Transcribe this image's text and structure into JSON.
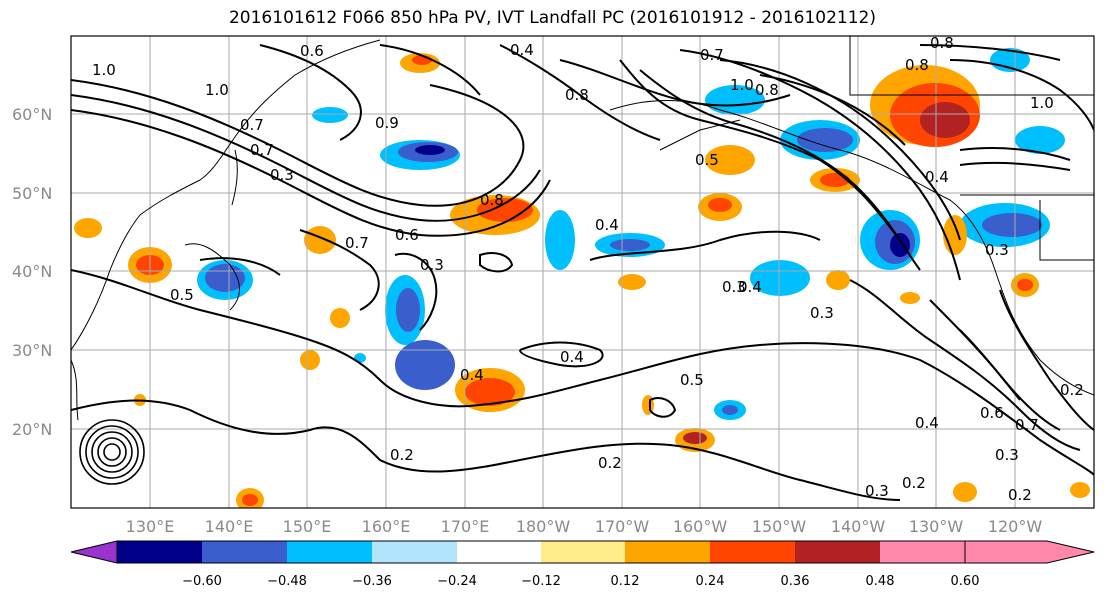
{
  "title": "2016101612 F066 850 hPa PV, IVT Landfall PC (2016101912 - 2016102112)",
  "lat_labels": [
    "60°N",
    "50°N",
    "40°N",
    "30°N",
    "20°N"
  ],
  "lon_labels": [
    "130°E",
    "140°E",
    "150°E",
    "160°E",
    "170°E",
    "180°W",
    "170°W",
    "160°W",
    "150°W",
    "140°W",
    "130°W",
    "120°W"
  ],
  "contour_labels": [
    "1.0",
    "1.0",
    "0.6",
    "0.4",
    "0.8",
    "0.7",
    "0.8",
    "1.0",
    "0.8",
    "0.7",
    "0.7",
    "0.3",
    "0.5",
    "0.9",
    "0.8",
    "0.5",
    "0.4",
    "0.7",
    "0.6",
    "0.3",
    "0.4",
    "0.3",
    "0.3",
    "0.4",
    "0.5",
    "0.2",
    "0.2",
    "0.4",
    "0.2",
    "0.3",
    "0.2",
    "0.2",
    "0.6",
    "0.7",
    "0.4",
    "0.3",
    "0.3",
    "0.8",
    "1.0",
    "0.4"
  ],
  "colorbar": {
    "ticks": [
      "−0.60",
      "−0.48",
      "−0.36",
      "−0.24",
      "−0.12",
      "0.12",
      "0.24",
      "0.36",
      "0.48",
      "0.60"
    ],
    "colors": [
      "#9a32cd",
      "#00008b",
      "#3a5fcd",
      "#00bfff",
      "#b2e4fb",
      "#ffffff",
      "#ffeb8a",
      "#ffa500",
      "#ff4500",
      "#b22222",
      "#ff88aa"
    ]
  }
}
